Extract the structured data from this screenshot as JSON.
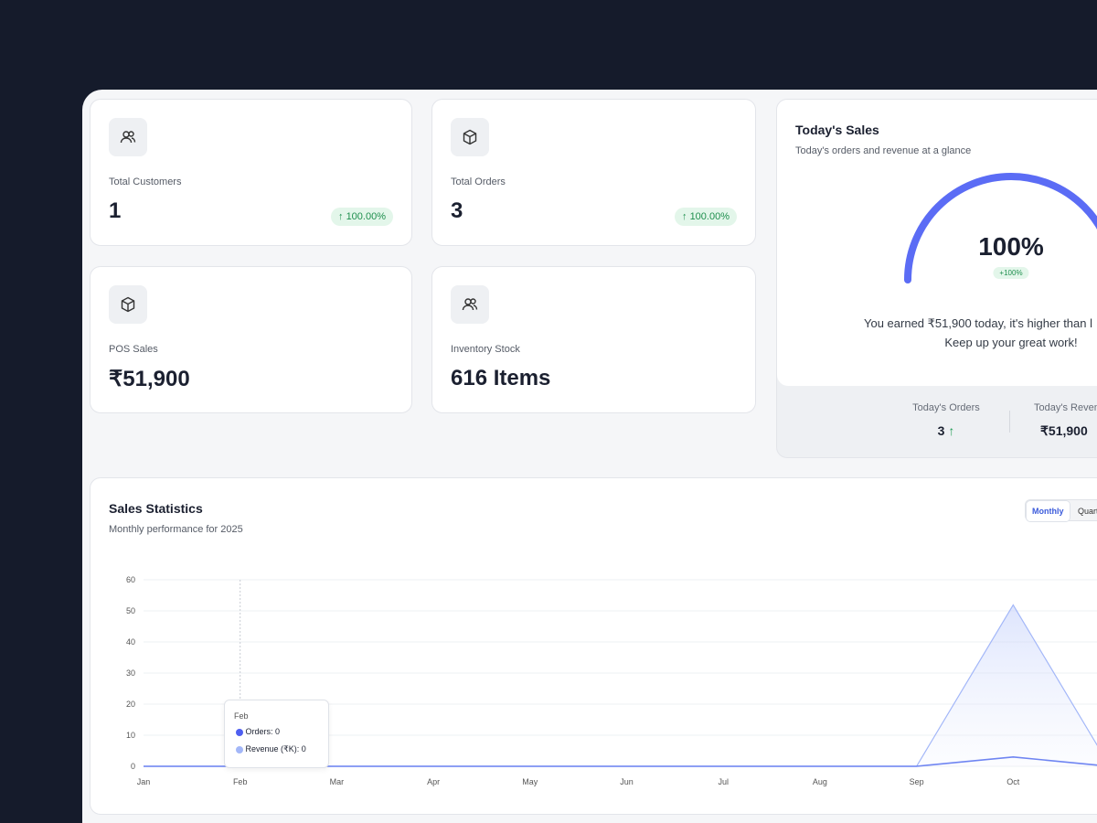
{
  "cards": [
    {
      "label": "Total Customers",
      "value": 1,
      "change": "100.00%"
    },
    {
      "label": "Total Orders",
      "value": 3,
      "change": "100.00%"
    },
    {
      "label": "POS Sales",
      "value": "₹51,900"
    },
    {
      "label": "Inventory Stock",
      "value": "616 Items"
    }
  ],
  "todays_sales": {
    "title": "Today's Sales",
    "subtitle": "Today's orders and revenue at a glance",
    "gauge": {
      "value": 100,
      "value_label": "100%",
      "change": "+100%"
    },
    "message": [
      "You earned ₹51,900 today, it's higher than l",
      "Keep up your great work!"
    ],
    "stats": [
      {
        "label": "Today's Orders",
        "value": 3
      },
      {
        "label": "Today's Revenue",
        "value": "₹51,900"
      }
    ]
  },
  "sales_statistics": {
    "toggle": [
      "Monthly",
      "Quarterly"
    ],
    "tooltip": {
      "title": "Feb",
      "items": [
        {
          "label": "Orders:",
          "value": 0
        },
        {
          "label": "Revenue (₹K):",
          "value": 0
        }
      ]
    }
  },
  "chart_data": {
    "type": "area",
    "title": "Sales Statistics",
    "subtitle": "Monthly performance for 2025",
    "categories": [
      "Jan",
      "Feb",
      "Mar",
      "Apr",
      "May",
      "Jun",
      "Jul",
      "Aug",
      "Sep",
      "Oct",
      null
    ],
    "series": [
      {
        "name": "Orders",
        "color": "#6f85f2",
        "values": [
          0,
          0,
          0,
          0,
          0,
          0,
          0,
          0,
          0,
          3,
          0
        ]
      },
      {
        "name": "Revenue (₹K)",
        "color": "#a3b7f8",
        "values": [
          0,
          0,
          0,
          0,
          0,
          0,
          0,
          0,
          0,
          51.9,
          0
        ]
      }
    ],
    "ylim": [
      0,
      60
    ],
    "yticks": [
      0,
      10,
      20,
      30,
      40,
      50,
      60
    ],
    "grid": true
  }
}
